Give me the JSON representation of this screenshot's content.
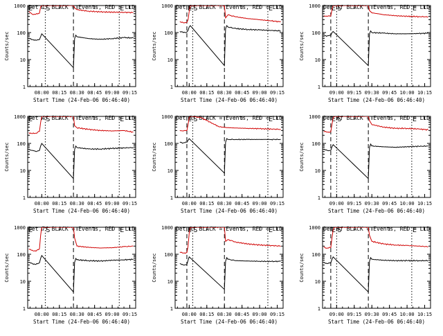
{
  "chart_data": [
    {
      "type": "line",
      "title": "Det 1f BLACK = Events, RED = LLD",
      "xlabel": "Start Time (24-Feb-06 06:46:40)",
      "ylabel": "Counts/sec",
      "yscale": "log",
      "ylim": [
        1,
        1000
      ],
      "yticks": [
        1,
        10,
        100,
        1000
      ],
      "xticks": [
        "08:00",
        "08:15",
        "08:30",
        "08:45",
        "09:00",
        "09:15"
      ],
      "markers": [
        {
          "label": "E",
          "x": "07:48",
          "style": "dashed"
        },
        {
          "label": "S",
          "x": "08:03",
          "style": "dotted"
        },
        {
          "label": "",
          "x": "08:27",
          "style": "dashed"
        },
        {
          "label": "E",
          "x": "09:06",
          "style": "dotted"
        }
      ],
      "series": [
        {
          "color": "#d00000",
          "x": [
            "07:49",
            "07:52",
            "07:55",
            "07:58",
            "07:59",
            "08:00",
            "08:01",
            "08:03",
            "08:27",
            "08:28",
            "08:30",
            "08:40",
            "08:50",
            "09:00",
            "09:10",
            "09:18"
          ],
          "y": [
            600,
            470,
            480,
            520,
            900,
            1000,
            1000,
            1000,
            1000,
            820,
            700,
            620,
            580,
            570,
            560,
            550
          ]
        },
        {
          "color": "#000000",
          "x": [
            "07:49",
            "07:52",
            "07:55",
            "07:58",
            "07:59",
            "08:00",
            "08:27",
            "08:28",
            "08:29",
            "08:30",
            "08:40",
            "08:50",
            "09:00",
            "09:10",
            "09:18"
          ],
          "y": [
            60,
            55,
            52,
            55,
            70,
            90,
            5,
            60,
            80,
            70,
            60,
            56,
            60,
            65,
            63
          ]
        }
      ]
    },
    {
      "type": "line",
      "title": "Det 2f BLACK = Events, RED = LLD",
      "xlabel": "Start Time (24-Feb-06 06:46:40)",
      "ylabel": "Counts/sec",
      "yscale": "log",
      "ylim": [
        1,
        1000
      ],
      "yticks": [
        1,
        10,
        100,
        1000
      ],
      "xticks": [
        "08:00",
        "08:15",
        "08:30",
        "08:45",
        "09:00",
        "09:15"
      ],
      "markers": [
        {
          "label": "E",
          "x": "07:58",
          "style": "dashed"
        },
        {
          "label": "S",
          "x": "08:03",
          "style": "dotted"
        },
        {
          "label": "",
          "x": "08:30",
          "style": "dashed"
        },
        {
          "label": "E",
          "x": "09:07",
          "style": "dotted"
        }
      ],
      "series": [
        {
          "color": "#d00000",
          "x": [
            "07:52",
            "07:55",
            "07:58",
            "07:59",
            "08:00",
            "08:01",
            "08:02",
            "08:30",
            "08:31",
            "08:33",
            "08:40",
            "08:50",
            "09:00",
            "09:10",
            "09:18"
          ],
          "y": [
            250,
            230,
            240,
            300,
            600,
            1000,
            1000,
            1000,
            350,
            450,
            380,
            330,
            300,
            270,
            250
          ]
        },
        {
          "color": "#000000",
          "x": [
            "07:52",
            "07:55",
            "07:58",
            "07:59",
            "08:00",
            "08:01",
            "08:30",
            "08:31",
            "08:32",
            "08:33",
            "08:40",
            "08:50",
            "09:00",
            "09:10",
            "09:18"
          ],
          "y": [
            110,
            100,
            105,
            120,
            160,
            180,
            6,
            140,
            180,
            160,
            140,
            130,
            125,
            120,
            115
          ]
        }
      ]
    },
    {
      "type": "line",
      "title": "Det 3f BLACK = Events, RED = LLD",
      "xlabel": "Start Time (24-Feb-06 06:46:40)",
      "ylabel": "Counts/sec",
      "yscale": "log",
      "ylim": [
        1,
        1000
      ],
      "yticks": [
        1,
        10,
        100,
        1000
      ],
      "xticks": [
        "09:00",
        "09:15",
        "09:30",
        "09:45",
        "10:00",
        "10:15"
      ],
      "markers": [
        {
          "label": "E",
          "x": "08:55",
          "style": "dashed"
        },
        {
          "label": "S",
          "x": "09:00",
          "style": "dotted"
        },
        {
          "label": "",
          "x": "09:27",
          "style": "dashed"
        },
        {
          "label": "E",
          "x": "10:04",
          "style": "dotted"
        }
      ],
      "series": [
        {
          "color": "#d00000",
          "x": [
            "08:49",
            "08:52",
            "08:55",
            "08:56",
            "08:57",
            "08:58",
            "09:27",
            "09:28",
            "09:30",
            "09:40",
            "09:50",
            "10:00",
            "10:10",
            "10:18"
          ],
          "y": [
            420,
            400,
            410,
            700,
            1000,
            1000,
            1000,
            650,
            540,
            460,
            420,
            400,
            390,
            380
          ]
        },
        {
          "color": "#000000",
          "x": [
            "08:49",
            "08:52",
            "08:55",
            "08:56",
            "08:57",
            "09:27",
            "09:28",
            "09:29",
            "09:30",
            "09:40",
            "09:50",
            "10:00",
            "10:10",
            "10:18"
          ],
          "y": [
            80,
            75,
            78,
            100,
            110,
            6,
            90,
            115,
            100,
            95,
            90,
            90,
            92,
            95
          ]
        }
      ]
    },
    {
      "type": "line",
      "title": "Det 4f BLACK = Events, RED = LLD",
      "xlabel": "Start Time (24-Feb-06 06:46:40)",
      "ylabel": "Counts/sec",
      "yscale": "log",
      "ylim": [
        1,
        1000
      ],
      "yticks": [
        1,
        10,
        100,
        1000
      ],
      "xticks": [
        "08:00",
        "08:15",
        "08:30",
        "08:45",
        "09:00",
        "09:15"
      ],
      "markers": [
        {
          "label": "E",
          "x": "07:48",
          "style": "dashed"
        },
        {
          "label": "S",
          "x": "08:03",
          "style": "dotted"
        },
        {
          "label": "",
          "x": "08:27",
          "style": "dashed"
        },
        {
          "label": "E",
          "x": "09:06",
          "style": "dotted"
        }
      ],
      "series": [
        {
          "color": "#d00000",
          "x": [
            "07:49",
            "07:52",
            "07:55",
            "07:58",
            "07:59",
            "08:00",
            "08:01",
            "08:27",
            "08:28",
            "08:30",
            "08:40",
            "08:50",
            "09:00",
            "09:10",
            "09:18"
          ],
          "y": [
            250,
            230,
            240,
            280,
            600,
            1000,
            1000,
            1000,
            450,
            380,
            330,
            300,
            290,
            300,
            260
          ]
        },
        {
          "color": "#000000",
          "x": [
            "07:49",
            "07:52",
            "07:55",
            "07:58",
            "07:59",
            "08:00",
            "08:27",
            "08:28",
            "08:29",
            "08:30",
            "08:40",
            "08:50",
            "09:00",
            "09:10",
            "09:18"
          ],
          "y": [
            60,
            55,
            50,
            55,
            80,
            100,
            5,
            60,
            80,
            70,
            62,
            62,
            65,
            68,
            70
          ]
        }
      ]
    },
    {
      "type": "line",
      "title": "Det 5f BLACK = Events, RED = LLD",
      "xlabel": "Start Time (24-Feb-06 06:46:40)",
      "ylabel": "Counts/sec",
      "yscale": "log",
      "ylim": [
        1,
        1000
      ],
      "yticks": [
        1,
        10,
        100,
        1000
      ],
      "xticks": [
        "08:00",
        "08:15",
        "08:30",
        "08:45",
        "09:00",
        "09:15"
      ],
      "markers": [
        {
          "label": "E",
          "x": "07:58",
          "style": "dashed"
        },
        {
          "label": "S",
          "x": "08:03",
          "style": "dotted"
        },
        {
          "label": "",
          "x": "08:30",
          "style": "dashed"
        },
        {
          "label": "E",
          "x": "09:07",
          "style": "dotted"
        }
      ],
      "series": [
        {
          "color": "#d00000",
          "x": [
            "07:52",
            "07:55",
            "07:58",
            "07:59",
            "08:00",
            "08:01",
            "08:03",
            "08:10",
            "08:15",
            "08:20",
            "08:25",
            "08:30",
            "08:40",
            "08:50",
            "09:00",
            "09:10",
            "09:18"
          ],
          "y": [
            300,
            290,
            300,
            500,
            900,
            1000,
            1000,
            900,
            700,
            550,
            420,
            390,
            370,
            360,
            350,
            340,
            330
          ]
        },
        {
          "color": "#000000",
          "x": [
            "07:52",
            "07:55",
            "07:58",
            "07:59",
            "08:00",
            "08:30",
            "08:31",
            "08:32",
            "08:33",
            "08:40",
            "08:50",
            "09:00",
            "09:10",
            "09:18"
          ],
          "y": [
            110,
            105,
            110,
            130,
            150,
            8,
            110,
            150,
            140,
            140,
            140,
            140,
            140,
            140
          ]
        }
      ]
    },
    {
      "type": "line",
      "title": "Det 6f BLACK = Events, RED = LLD",
      "xlabel": "Start Time (24-Feb-06 06:46:40)",
      "ylabel": "Counts/sec",
      "yscale": "log",
      "ylim": [
        1,
        1000
      ],
      "yticks": [
        1,
        10,
        100,
        1000
      ],
      "xticks": [
        "09:00",
        "09:15",
        "09:30",
        "09:45",
        "10:00",
        "10:15"
      ],
      "markers": [
        {
          "label": "E",
          "x": "08:55",
          "style": "dashed"
        },
        {
          "label": "S",
          "x": "09:00",
          "style": "dotted"
        },
        {
          "label": "",
          "x": "09:27",
          "style": "dashed"
        },
        {
          "label": "E",
          "x": "10:04",
          "style": "dotted"
        }
      ],
      "series": [
        {
          "color": "#d00000",
          "x": [
            "08:49",
            "08:52",
            "08:55",
            "08:56",
            "08:57",
            "08:58",
            "09:27",
            "09:28",
            "09:30",
            "09:40",
            "09:50",
            "10:00",
            "10:10",
            "10:18"
          ],
          "y": [
            280,
            260,
            270,
            500,
            900,
            1000,
            1000,
            700,
            500,
            400,
            360,
            360,
            340,
            320
          ]
        },
        {
          "color": "#000000",
          "x": [
            "08:49",
            "08:52",
            "08:55",
            "08:56",
            "08:57",
            "09:27",
            "09:28",
            "09:29",
            "09:30",
            "09:40",
            "09:50",
            "10:00",
            "10:10",
            "10:18"
          ],
          "y": [
            60,
            55,
            55,
            75,
            90,
            5,
            70,
            95,
            80,
            75,
            72,
            75,
            78,
            80
          ]
        }
      ]
    },
    {
      "type": "line",
      "title": "Det 7f BLACK = Events, RED = LLD",
      "xlabel": "Start Time (24-Feb-06 06:46:40)",
      "ylabel": "Counts/sec",
      "yscale": "log",
      "ylim": [
        1,
        1000
      ],
      "yticks": [
        1,
        10,
        100,
        1000
      ],
      "xticks": [
        "08:00",
        "08:15",
        "08:30",
        "08:45",
        "09:00",
        "09:15"
      ],
      "markers": [
        {
          "label": "E",
          "x": "07:48",
          "style": "dashed"
        },
        {
          "label": "S",
          "x": "08:03",
          "style": "dotted"
        },
        {
          "label": "",
          "x": "08:27",
          "style": "dashed"
        },
        {
          "label": "E",
          "x": "09:06",
          "style": "dotted"
        }
      ],
      "series": [
        {
          "color": "#d00000",
          "x": [
            "07:49",
            "07:52",
            "07:55",
            "07:58",
            "07:59",
            "08:00",
            "08:01",
            "08:27",
            "08:28",
            "08:30",
            "08:40",
            "08:50",
            "09:00",
            "09:10",
            "09:18"
          ],
          "y": [
            150,
            140,
            130,
            160,
            500,
            1000,
            1000,
            1000,
            400,
            200,
            180,
            170,
            175,
            190,
            200
          ]
        },
        {
          "color": "#000000",
          "x": [
            "07:49",
            "07:52",
            "07:55",
            "07:58",
            "07:59",
            "08:00",
            "08:27",
            "08:28",
            "08:29",
            "08:30",
            "08:40",
            "08:50",
            "09:00",
            "09:10",
            "09:18"
          ],
          "y": [
            50,
            45,
            42,
            48,
            70,
            90,
            4,
            50,
            70,
            62,
            58,
            56,
            60,
            62,
            65
          ]
        }
      ]
    },
    {
      "type": "line",
      "title": "Det 8f BLACK = Events, RED = LLD",
      "xlabel": "Start Time (24-Feb-06 06:46:40)",
      "ylabel": "Counts/sec",
      "yscale": "log",
      "ylim": [
        1,
        1000
      ],
      "yticks": [
        1,
        10,
        100,
        1000
      ],
      "xticks": [
        "08:00",
        "08:15",
        "08:30",
        "08:45",
        "09:00",
        "09:15"
      ],
      "markers": [
        {
          "label": "E",
          "x": "07:58",
          "style": "dashed"
        },
        {
          "label": "S",
          "x": "08:03",
          "style": "dotted"
        },
        {
          "label": "",
          "x": "08:30",
          "style": "dashed"
        },
        {
          "label": "E",
          "x": "09:07",
          "style": "dotted"
        }
      ],
      "series": [
        {
          "color": "#d00000",
          "x": [
            "07:52",
            "07:55",
            "07:58",
            "07:59",
            "08:00",
            "08:01",
            "08:02",
            "08:30",
            "08:31",
            "08:33",
            "08:40",
            "08:50",
            "09:00",
            "09:10",
            "09:18"
          ],
          "y": [
            120,
            110,
            115,
            200,
            600,
            1000,
            1000,
            1000,
            300,
            350,
            280,
            240,
            220,
            210,
            200
          ]
        },
        {
          "color": "#000000",
          "x": [
            "07:52",
            "07:55",
            "07:58",
            "07:59",
            "08:00",
            "08:30",
            "08:31",
            "08:32",
            "08:33",
            "08:40",
            "08:50",
            "09:00",
            "09:10",
            "09:18"
          ],
          "y": [
            45,
            40,
            42,
            60,
            80,
            5,
            55,
            75,
            65,
            58,
            56,
            55,
            54,
            55
          ]
        }
      ]
    },
    {
      "type": "line",
      "title": "Det 9f BLACK = Events, RED = LLD",
      "xlabel": "Start Time (24-Feb-06 06:46:40)",
      "ylabel": "Counts/sec",
      "yscale": "log",
      "ylim": [
        1,
        1000
      ],
      "yticks": [
        1,
        10,
        100,
        1000
      ],
      "xticks": [
        "09:00",
        "09:15",
        "09:30",
        "09:45",
        "10:00",
        "10:15"
      ],
      "markers": [
        {
          "label": "E",
          "x": "08:55",
          "style": "dashed"
        },
        {
          "label": "S",
          "x": "09:00",
          "style": "dotted"
        },
        {
          "label": "",
          "x": "09:27",
          "style": "dashed"
        },
        {
          "label": "E",
          "x": "10:04",
          "style": "dotted"
        }
      ],
      "series": [
        {
          "color": "#d00000",
          "x": [
            "08:49",
            "08:52",
            "08:55",
            "08:56",
            "08:57",
            "08:58",
            "09:27",
            "09:28",
            "09:30",
            "09:40",
            "09:50",
            "10:00",
            "10:10",
            "10:18"
          ],
          "y": [
            180,
            170,
            175,
            400,
            800,
            1000,
            1000,
            500,
            300,
            240,
            220,
            210,
            200,
            190
          ]
        },
        {
          "color": "#000000",
          "x": [
            "08:49",
            "08:52",
            "08:55",
            "08:56",
            "08:57",
            "09:27",
            "09:28",
            "09:29",
            "09:30",
            "09:40",
            "09:50",
            "10:00",
            "10:10",
            "10:18"
          ],
          "y": [
            50,
            45,
            48,
            65,
            80,
            4,
            55,
            75,
            65,
            60,
            58,
            58,
            58,
            58
          ]
        }
      ]
    }
  ]
}
